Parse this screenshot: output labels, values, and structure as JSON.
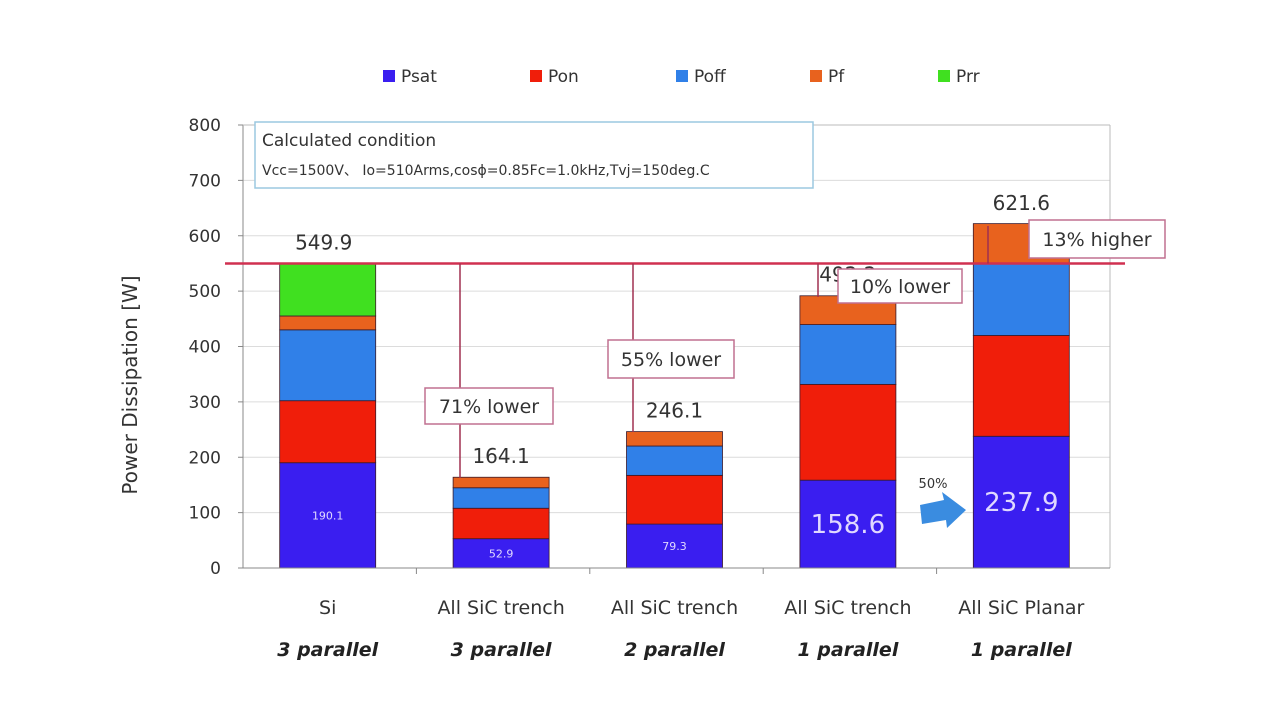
{
  "chart_data": {
    "type": "bar",
    "stacked": true,
    "title": "",
    "xlabel": "",
    "ylabel": "Power Dissipation [W]",
    "ylim": [
      0,
      800
    ],
    "yticks": [
      0,
      100,
      200,
      300,
      400,
      500,
      600,
      700,
      800
    ],
    "grid": true,
    "legend_position": "top",
    "categories": [
      "Si",
      "All SiC trench",
      "All SiC trench",
      "All SiC trench",
      "All SiC Planar"
    ],
    "subcategories": [
      "3 parallel",
      "3 parallel",
      "2 parallel",
      "1 parallel",
      "1 parallel"
    ],
    "series": [
      {
        "name": "Psat",
        "color": "#3a1ef0",
        "values": [
          190.1,
          52.9,
          79.3,
          158.6,
          237.9
        ]
      },
      {
        "name": "Pon",
        "color": "#f01e0a",
        "values": [
          112,
          55,
          88,
          173,
          182
        ]
      },
      {
        "name": "Poff",
        "color": "#3080e8",
        "values": [
          128,
          37,
          53,
          108,
          130
        ]
      },
      {
        "name": "Pf",
        "color": "#e8621e",
        "values": [
          25,
          19,
          26,
          52,
          72
        ]
      },
      {
        "name": "Prr",
        "color": "#40e020",
        "values": [
          95,
          0,
          0,
          0,
          0
        ]
      }
    ],
    "totals": [
      "549.9",
      "164.1",
      "246.1",
      "492.2",
      "621.6"
    ],
    "psat_labels": [
      "190.1",
      "52.9",
      "79.3",
      "158.6",
      "237.9"
    ],
    "reference_line": {
      "value": 549.9,
      "color": "#d03050"
    },
    "annotations": [
      {
        "text": "71% lower",
        "bar": 1
      },
      {
        "text": "55% lower",
        "bar": 2
      },
      {
        "text": "10% lower",
        "bar": 3
      },
      {
        "text": "13% higher",
        "bar": 4
      }
    ],
    "arrow_label": "50%",
    "condition_box": {
      "title": "Calculated condition",
      "text": "Vcc=1500V、 Io=510Arms,cosϕ=0.85Fc=1.0kHz,Tvj=150deg.C"
    }
  }
}
